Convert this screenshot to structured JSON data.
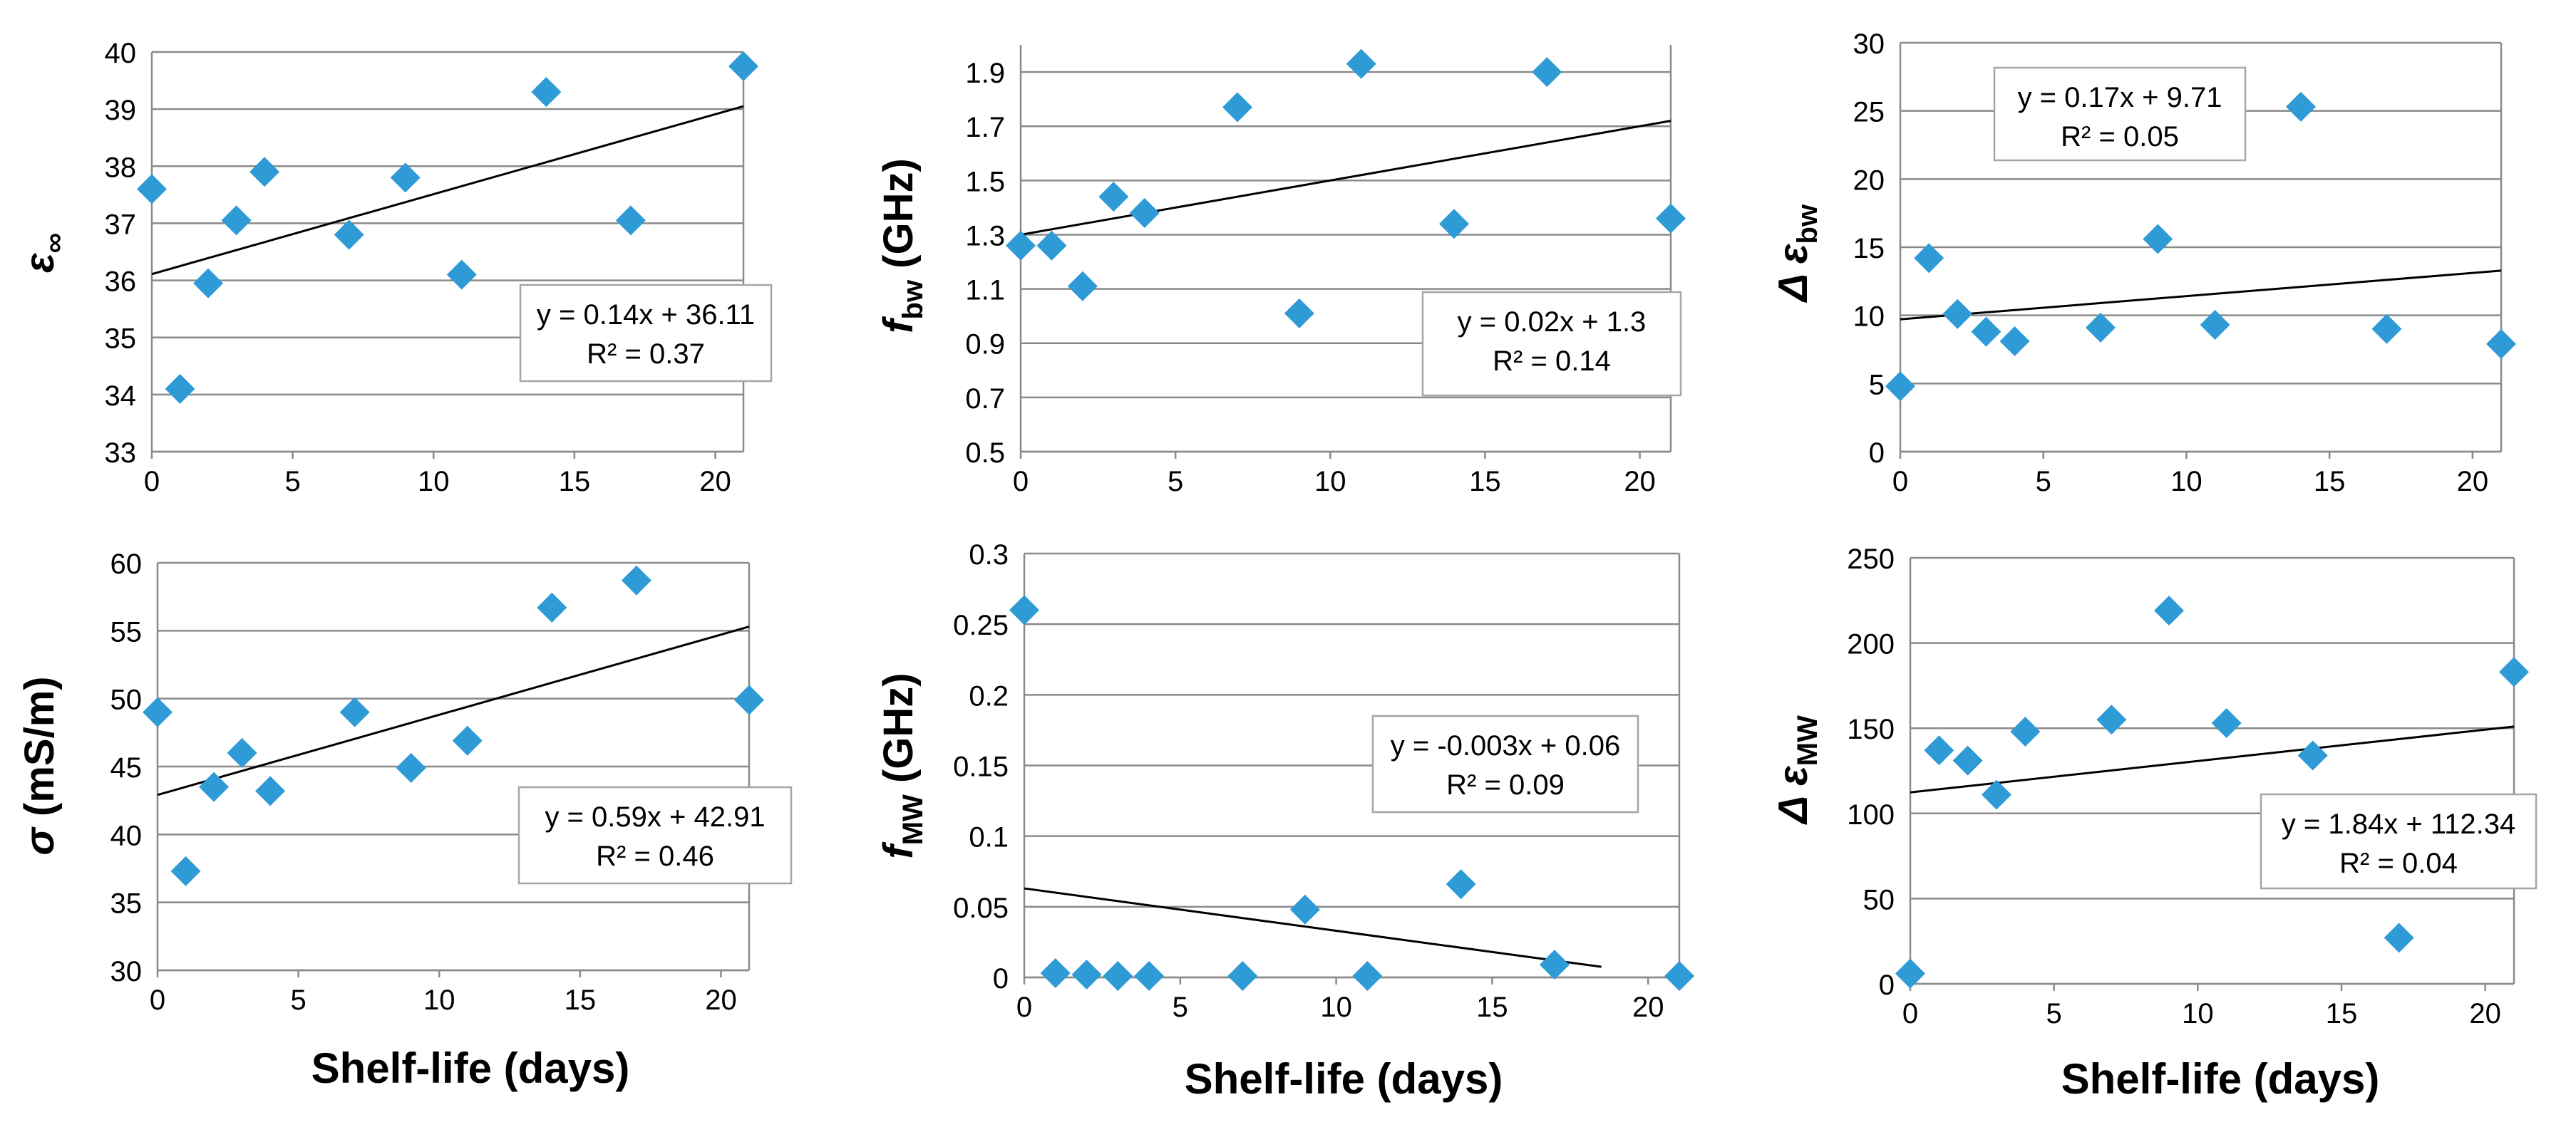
{
  "colors": {
    "marker": "#2E9BD6",
    "trendline": "#000000",
    "gridline": "#8A8A8A",
    "axis": "#8A8A8A",
    "text": "#000000",
    "eqbox_border": "#A6A6A6"
  },
  "x_axis_title": "Shelf-life (days)",
  "chart_data": [
    {
      "type": "scatter",
      "ylabel": {
        "main": "ε",
        "sub": "∞"
      },
      "xlim": [
        0,
        21
      ],
      "xticks": [
        0,
        5,
        10,
        15,
        20
      ],
      "ylim": [
        33,
        40
      ],
      "yticks": [
        33,
        34,
        35,
        36,
        37,
        38,
        39,
        40
      ],
      "ytick_labels": [
        "33",
        "34",
        "35",
        "36",
        "37",
        "38",
        "39",
        "40"
      ],
      "x": [
        0,
        1,
        2,
        3,
        4,
        7,
        9,
        11,
        14,
        17,
        21
      ],
      "y": [
        37.6,
        34.1,
        35.95,
        37.05,
        37.9,
        36.8,
        37.8,
        36.1,
        39.3,
        37.05,
        39.75
      ],
      "trend": {
        "slope": 0.14,
        "intercept": 36.11,
        "x0": 0,
        "x1": 21
      },
      "equation": "y = 0.14x + 36.11",
      "r2": "R² = 0.37",
      "grid": true
    },
    {
      "type": "scatter",
      "ylabel": {
        "main": "f",
        "sub": "bw",
        "unit": " (GHz)"
      },
      "xlim": [
        0,
        21
      ],
      "xticks": [
        0,
        5,
        10,
        15,
        20
      ],
      "ylim": [
        0.5,
        2.0
      ],
      "yticks": [
        0.5,
        0.7,
        0.9,
        1.1,
        1.3,
        1.5,
        1.7,
        1.9
      ],
      "ytick_labels": [
        "0.5",
        "0.7",
        "0.9",
        "1.1",
        "1.3",
        "1.5",
        "1.7",
        "1.9"
      ],
      "x": [
        0,
        1,
        2,
        3,
        4,
        7,
        9,
        11,
        14,
        17,
        21
      ],
      "y": [
        1.26,
        1.26,
        1.11,
        1.44,
        1.38,
        1.77,
        1.01,
        1.93,
        1.34,
        1.9,
        1.36
      ],
      "trend": {
        "slope": 0.02,
        "intercept": 1.3,
        "x0": 0,
        "x1": 21
      },
      "equation": "y = 0.02x + 1.3",
      "r2": "R² = 0.14",
      "grid": true
    },
    {
      "type": "scatter",
      "ylabel": {
        "main": "Δ ε",
        "sub": "bw"
      },
      "xlim": [
        0,
        21
      ],
      "xticks": [
        0,
        5,
        10,
        15,
        20
      ],
      "ylim": [
        0,
        30
      ],
      "yticks": [
        0,
        5,
        10,
        15,
        20,
        25,
        30
      ],
      "ytick_labels": [
        "0",
        "5",
        "10",
        "15",
        "20",
        "25",
        "30"
      ],
      "x": [
        0,
        1,
        2,
        3,
        4,
        7,
        9,
        11,
        14,
        17,
        21
      ],
      "y": [
        4.8,
        14.2,
        10.1,
        8.8,
        8.1,
        9.1,
        15.6,
        9.3,
        25.3,
        9.0,
        7.9
      ],
      "trend": {
        "slope": 0.17,
        "intercept": 9.71,
        "x0": 0,
        "x1": 21
      },
      "equation": "y = 0.17x + 9.71",
      "r2": "R² = 0.05",
      "grid": true
    },
    {
      "type": "scatter",
      "ylabel": {
        "main": "σ",
        "unit": " (mS/m)"
      },
      "xlim": [
        0,
        21
      ],
      "xticks": [
        0,
        5,
        10,
        15,
        20
      ],
      "ylim": [
        30,
        60
      ],
      "yticks": [
        30,
        35,
        40,
        45,
        50,
        55,
        60
      ],
      "ytick_labels": [
        "30",
        "35",
        "40",
        "45",
        "50",
        "55",
        "60"
      ],
      "x": [
        0,
        1,
        2,
        3,
        4,
        7,
        9,
        11,
        14,
        17,
        21
      ],
      "y": [
        49.0,
        37.3,
        43.5,
        46.0,
        43.2,
        49.0,
        44.9,
        46.9,
        56.7,
        58.7,
        49.9
      ],
      "trend": {
        "slope": 0.59,
        "intercept": 42.91,
        "x0": 0,
        "x1": 21
      },
      "equation": "y = 0.59x + 42.91",
      "r2": "R² = 0.46",
      "grid": true
    },
    {
      "type": "scatter",
      "ylabel": {
        "main": "f",
        "sub": "MW",
        "unit": " (GHz)"
      },
      "xlim": [
        0,
        21
      ],
      "xticks": [
        0,
        5,
        10,
        15,
        20
      ],
      "ylim": [
        0,
        0.3
      ],
      "yticks": [
        0,
        0.05,
        0.1,
        0.15,
        0.2,
        0.25,
        0.3
      ],
      "ytick_labels": [
        "0",
        "0.05",
        "0.1",
        "0.15",
        "0.2",
        "0.25",
        "0.3"
      ],
      "x": [
        0,
        1,
        2,
        3,
        4,
        7,
        9,
        11,
        14,
        17,
        21
      ],
      "y": [
        0.26,
        0.003,
        0.002,
        0.001,
        0.001,
        0.001,
        0.048,
        0.001,
        0.066,
        0.009,
        0.001
      ],
      "trend": {
        "slope": -0.003,
        "intercept": 0.063,
        "x0": 0,
        "x1": 18.5
      },
      "equation": "y = -0.003x + 0.06",
      "r2": "R² = 0.09",
      "grid": true
    },
    {
      "type": "scatter",
      "ylabel": {
        "main": "Δ ε",
        "sub": "MW"
      },
      "xlim": [
        0,
        21
      ],
      "xticks": [
        0,
        5,
        10,
        15,
        20
      ],
      "ylim": [
        0,
        250
      ],
      "yticks": [
        0,
        50,
        100,
        150,
        200,
        250
      ],
      "ytick_labels": [
        "0",
        "50",
        "100",
        "150",
        "200",
        "250"
      ],
      "x": [
        0,
        1,
        2,
        3,
        4,
        7,
        9,
        11,
        14,
        17,
        21
      ],
      "y": [
        6,
        137,
        131,
        111,
        148,
        155,
        219,
        153,
        134,
        27,
        183
      ],
      "trend": {
        "slope": 1.84,
        "intercept": 112.34,
        "x0": 0,
        "x1": 21
      },
      "equation": "y = 1.84x + 112.34",
      "r2": "R² = 0.04",
      "grid": true
    }
  ]
}
